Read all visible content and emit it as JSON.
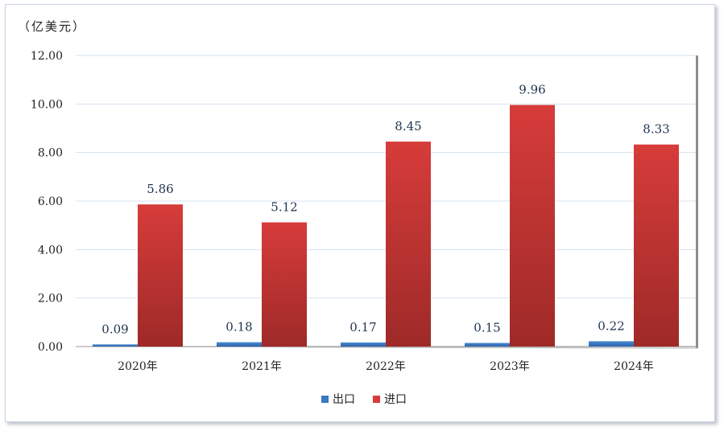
{
  "unit_label": "（亿美元）",
  "colors": {
    "export": "#3a78c2",
    "import": "#d63c3a",
    "import_dark": "#9e2a28",
    "grid": "#d5e3f0"
  },
  "chart_data": {
    "type": "bar",
    "categories": [
      "2020年",
      "2021年",
      "2022年",
      "2023年",
      "2024年"
    ],
    "series": [
      {
        "name": "出口",
        "values": [
          0.09,
          0.18,
          0.17,
          0.15,
          0.22
        ],
        "labels": [
          "0.09",
          "0.18",
          "0.17",
          "0.15",
          "0.22"
        ]
      },
      {
        "name": "进口",
        "values": [
          5.86,
          5.12,
          8.45,
          9.96,
          8.33
        ],
        "labels": [
          "5.86",
          "5.12",
          "8.45",
          "9.96",
          "8.33"
        ]
      }
    ],
    "ylim": [
      0,
      12
    ],
    "yticks": [
      "0.00",
      "2.00",
      "4.00",
      "6.00",
      "8.00",
      "10.00",
      "12.00"
    ],
    "grid": true,
    "legend": "bottom"
  }
}
